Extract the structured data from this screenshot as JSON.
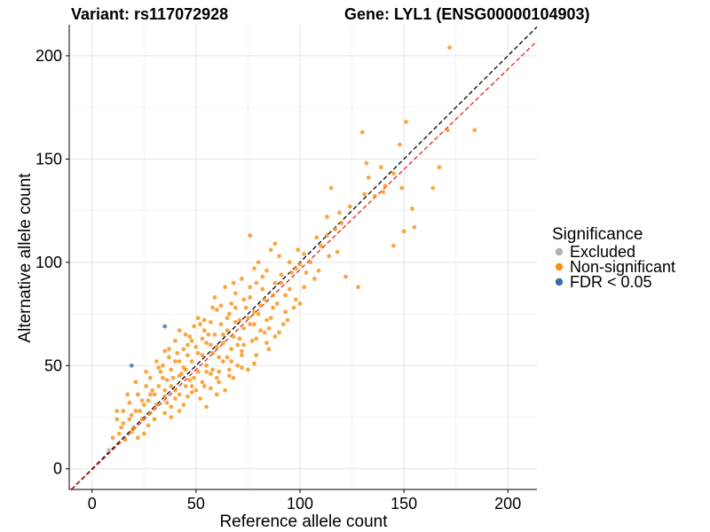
{
  "chart_data": {
    "type": "scatter",
    "title_left": "Variant: rs117072928",
    "title_right": "Gene: LYL1 (ENSG00000104903)",
    "xlabel": "Reference allele count",
    "ylabel": "Alternative allele count",
    "xlim": [
      -11,
      214
    ],
    "ylim": [
      -10,
      215
    ],
    "x_ticks": [
      0,
      50,
      100,
      150,
      200
    ],
    "y_ticks": [
      0,
      50,
      100,
      150,
      200
    ],
    "grid": true,
    "legend": {
      "title": "Significance",
      "position": "right",
      "entries": [
        {
          "label": "Excluded",
          "color": "#b0b0b0"
        },
        {
          "label": "Non-significant",
          "color": "#f5900f"
        },
        {
          "label": "FDR < 0.05",
          "color": "#3b6ea5"
        }
      ]
    },
    "reference_lines": [
      {
        "kind": "identity",
        "slope": 1,
        "intercept": 0,
        "color": "#000000",
        "style": "dashed"
      },
      {
        "kind": "fit",
        "slope": 0.97,
        "intercept": -0.5,
        "color": "#e8241b",
        "style": "dashed"
      }
    ],
    "series": [
      {
        "name": "Non-significant",
        "color": "#f5900f",
        "points": [
          [
            172,
            204
          ],
          [
            151,
            168
          ],
          [
            184,
            164
          ],
          [
            171,
            164
          ],
          [
            130,
            163
          ],
          [
            148,
            157
          ],
          [
            132,
            148
          ],
          [
            167,
            146
          ],
          [
            145,
            143
          ],
          [
            133,
            141
          ],
          [
            164,
            136
          ],
          [
            115,
            136
          ],
          [
            140,
            134
          ],
          [
            131,
            133
          ],
          [
            154,
            126
          ],
          [
            119,
            124
          ],
          [
            113,
            122
          ],
          [
            155,
            117
          ],
          [
            117,
            116
          ],
          [
            150,
            115
          ],
          [
            113,
            113
          ],
          [
            76,
            113
          ],
          [
            145,
            108
          ],
          [
            110,
            108
          ],
          [
            118,
            105
          ],
          [
            114,
            103
          ],
          [
            102,
            104
          ],
          [
            86,
            106
          ],
          [
            90,
            103
          ],
          [
            80,
            100
          ],
          [
            95,
            100
          ],
          [
            98,
            97
          ],
          [
            100,
            99
          ],
          [
            109,
            96
          ],
          [
            84,
            96
          ],
          [
            122,
            93
          ],
          [
            91,
            94
          ],
          [
            72,
            92
          ],
          [
            79,
            90
          ],
          [
            88,
            90
          ],
          [
            128,
            88
          ],
          [
            82,
            87
          ],
          [
            69,
            85
          ],
          [
            73,
            82
          ],
          [
            93,
            84
          ],
          [
            83,
            82
          ],
          [
            69,
            78
          ],
          [
            89,
            80
          ],
          [
            97,
            78
          ],
          [
            60,
            77
          ],
          [
            66,
            75
          ],
          [
            78,
            76
          ],
          [
            51,
            73
          ],
          [
            65,
            73
          ],
          [
            80,
            75
          ],
          [
            84,
            72
          ],
          [
            57,
            71
          ],
          [
            62,
            70
          ],
          [
            71,
            72
          ],
          [
            76,
            70
          ],
          [
            92,
            70
          ],
          [
            49,
            69
          ],
          [
            54,
            67
          ],
          [
            65,
            67
          ],
          [
            42,
            67
          ],
          [
            73,
            68
          ],
          [
            81,
            67
          ],
          [
            59,
            65
          ],
          [
            68,
            64
          ],
          [
            71,
            63
          ],
          [
            48,
            62
          ],
          [
            55,
            61
          ],
          [
            63,
            61
          ],
          [
            40,
            62
          ],
          [
            77,
            62
          ],
          [
            88,
            64
          ],
          [
            35,
            57
          ],
          [
            44,
            58
          ],
          [
            50,
            59
          ],
          [
            60,
            59
          ],
          [
            67,
            58
          ],
          [
            46,
            55
          ],
          [
            53,
            55
          ],
          [
            58,
            56
          ],
          [
            72,
            55
          ],
          [
            79,
            55
          ],
          [
            85,
            58
          ],
          [
            37,
            54
          ],
          [
            42,
            52
          ],
          [
            48,
            52
          ],
          [
            55,
            50
          ],
          [
            63,
            52
          ],
          [
            70,
            50
          ],
          [
            32,
            49
          ],
          [
            38,
            48
          ],
          [
            45,
            48
          ],
          [
            51,
            47
          ],
          [
            57,
            46
          ],
          [
            66,
            48
          ],
          [
            75,
            48
          ],
          [
            42,
            45
          ],
          [
            28,
            44
          ],
          [
            34,
            44
          ],
          [
            47,
            43
          ],
          [
            53,
            42
          ],
          [
            61,
            42
          ],
          [
            68,
            44
          ],
          [
            26,
            40
          ],
          [
            32,
            40
          ],
          [
            38,
            40
          ],
          [
            45,
            40
          ],
          [
            50,
            38
          ],
          [
            57,
            39
          ],
          [
            64,
            38
          ],
          [
            22,
            36
          ],
          [
            28,
            36
          ],
          [
            35,
            35
          ],
          [
            40,
            34
          ],
          [
            46,
            35
          ],
          [
            52,
            34
          ],
          [
            60,
            36
          ],
          [
            18,
            32
          ],
          [
            25,
            31
          ],
          [
            31,
            31
          ],
          [
            38,
            30
          ],
          [
            44,
            31
          ],
          [
            55,
            30
          ],
          [
            15,
            28
          ],
          [
            21,
            28
          ],
          [
            28,
            27
          ],
          [
            35,
            27
          ],
          [
            42,
            28
          ],
          [
            12,
            24
          ],
          [
            18,
            24
          ],
          [
            24,
            24
          ],
          [
            30,
            24
          ],
          [
            38,
            25
          ],
          [
            14,
            20
          ],
          [
            20,
            20
          ],
          [
            27,
            21
          ],
          [
            13,
            17
          ],
          [
            19,
            18
          ],
          [
            25,
            17
          ],
          [
            10,
            15
          ],
          [
            16,
            14
          ],
          [
            22,
            15
          ],
          [
            78,
            70
          ],
          [
            86,
            73
          ],
          [
            95,
            87
          ],
          [
            59,
            83
          ],
          [
            67,
            80
          ],
          [
            87,
            78
          ],
          [
            76,
            83
          ],
          [
            61,
            54
          ],
          [
            53,
            63
          ],
          [
            47,
            64
          ],
          [
            41,
            56
          ],
          [
            36,
            43
          ],
          [
            29,
            38
          ],
          [
            24,
            33
          ],
          [
            33,
            47
          ],
          [
            56,
            65
          ],
          [
            70,
            60
          ],
          [
            74,
            78
          ],
          [
            82,
            93
          ],
          [
            102,
            88
          ],
          [
            105,
            100
          ],
          [
            107,
            92
          ],
          [
            78,
            97
          ],
          [
            88,
            109
          ],
          [
            64,
            88
          ],
          [
            40,
            38
          ],
          [
            48,
            40
          ],
          [
            58,
            48
          ],
          [
            65,
            54
          ],
          [
            72,
            57
          ],
          [
            83,
            66
          ],
          [
            93,
            76
          ],
          [
            98,
            82
          ],
          [
            62,
            79
          ],
          [
            54,
            72
          ],
          [
            45,
            65
          ],
          [
            37,
            58
          ],
          [
            31,
            52
          ],
          [
            26,
            47
          ],
          [
            21,
            42
          ],
          [
            17,
            36
          ],
          [
            12,
            28
          ],
          [
            108,
            112
          ],
          [
            120,
            119
          ],
          [
            124,
            127
          ],
          [
            136,
            132
          ],
          [
            139,
            146
          ],
          [
            149,
            136
          ],
          [
            141,
            137
          ],
          [
            44,
            49
          ],
          [
            51,
            56
          ],
          [
            57,
            60
          ],
          [
            63,
            65
          ],
          [
            69,
            71
          ],
          [
            75,
            73
          ],
          [
            81,
            79
          ],
          [
            87,
            84
          ],
          [
            91,
            90
          ],
          [
            96,
            95
          ],
          [
            35,
            38
          ],
          [
            39,
            44
          ],
          [
            43,
            46
          ],
          [
            27,
            33
          ],
          [
            23,
            28
          ],
          [
            19,
            26
          ],
          [
            15,
            22
          ],
          [
            49,
            44
          ],
          [
            55,
            47
          ],
          [
            61,
            47
          ],
          [
            67,
            52
          ],
          [
            73,
            60
          ],
          [
            79,
            63
          ],
          [
            85,
            68
          ],
          [
            90,
            66
          ],
          [
            103,
            95
          ],
          [
            99,
            106
          ],
          [
            76,
            88
          ],
          [
            68,
            90
          ],
          [
            58,
            78
          ],
          [
            52,
            70
          ],
          [
            46,
            60
          ],
          [
            40,
            52
          ],
          [
            34,
            50
          ],
          [
            30,
            36
          ],
          [
            36,
            32
          ],
          [
            42,
            36
          ],
          [
            48,
            37
          ],
          [
            54,
            40
          ],
          [
            60,
            44
          ],
          [
            66,
            45
          ],
          [
            72,
            49
          ],
          [
            78,
            51
          ],
          [
            84,
            61
          ],
          [
            94,
            72
          ],
          [
            100,
            80
          ]
        ]
      },
      {
        "name": "FDR < 0.05",
        "color": "#3b6ea5",
        "points": [
          [
            35,
            69
          ],
          [
            19,
            50
          ]
        ]
      },
      {
        "name": "Excluded",
        "color": "#b0b0b0",
        "points": [
          [
            8,
            9
          ]
        ]
      }
    ]
  }
}
